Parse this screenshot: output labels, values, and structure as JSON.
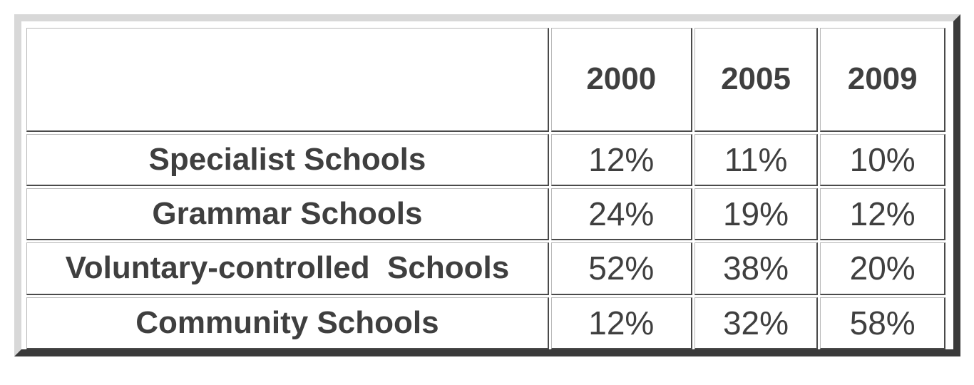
{
  "chart_data": {
    "type": "table",
    "columns": [
      "",
      "2000",
      "2005",
      "2009"
    ],
    "rows": [
      {
        "label": "Specialist Schools",
        "values": [
          "12%",
          "11%",
          "10%"
        ]
      },
      {
        "label": "Grammar Schools",
        "values": [
          "24%",
          "19%",
          "12%"
        ]
      },
      {
        "label": "Voluntary-controlled  Schools",
        "values": [
          "52%",
          "38%",
          "20%"
        ]
      },
      {
        "label": "Community Schools",
        "values": [
          "12%",
          "32%",
          "58%"
        ]
      }
    ]
  }
}
